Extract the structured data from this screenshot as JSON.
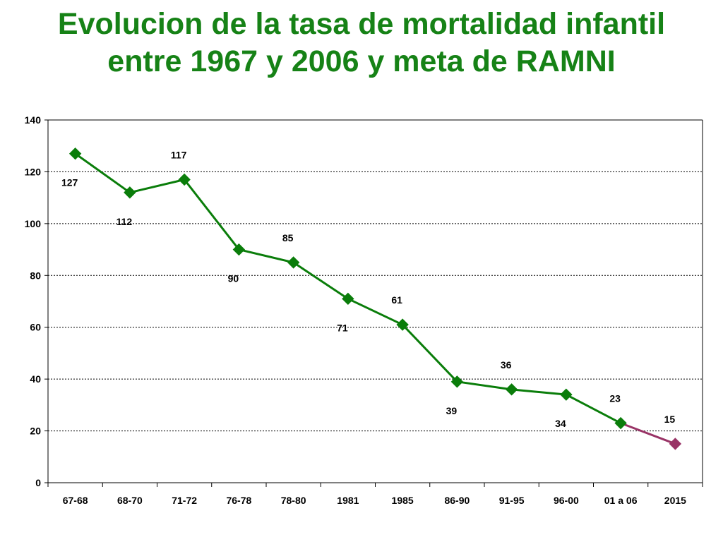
{
  "title": {
    "line1": "Evolucion de la tasa de mortalidad infantil",
    "line2": "entre 1967 y 2006 y meta de RAMNI"
  },
  "colors": {
    "title": "#168216",
    "series_main": "#0a7d0a",
    "series_target": "#993366"
  },
  "chart_data": {
    "type": "line",
    "title": "Evolucion de la tasa de mortalidad infantil entre 1967 y 2006 y meta de RAMNI",
    "xlabel": "",
    "ylabel": "",
    "categories": [
      "67-68",
      "68-70",
      "71-72",
      "76-78",
      "78-80",
      "1981",
      "1985",
      "86-90",
      "91-95",
      "96-00",
      "01 a 06",
      "2015"
    ],
    "series": [
      {
        "values": [
          127,
          112,
          117,
          90,
          85,
          71,
          61,
          39,
          36,
          34,
          23,
          null
        ],
        "color": "#0a7d0a"
      },
      {
        "values": [
          null,
          null,
          null,
          null,
          null,
          null,
          null,
          null,
          null,
          null,
          23,
          15
        ],
        "color": "#993366"
      }
    ],
    "data_labels": [
      "127",
      "112",
      "117",
      "90",
      "85",
      "71",
      "61",
      "39",
      "36",
      "34",
      "23",
      "15"
    ],
    "label_positions": [
      "below",
      "below",
      "above",
      "below",
      "above",
      "below",
      "above",
      "below",
      "above",
      "below",
      "above",
      "above"
    ],
    "ylim": [
      0,
      140
    ],
    "yticks": [
      0,
      20,
      40,
      60,
      80,
      100,
      120,
      140
    ],
    "grid": "dotted-horizontal",
    "legend": "none"
  }
}
